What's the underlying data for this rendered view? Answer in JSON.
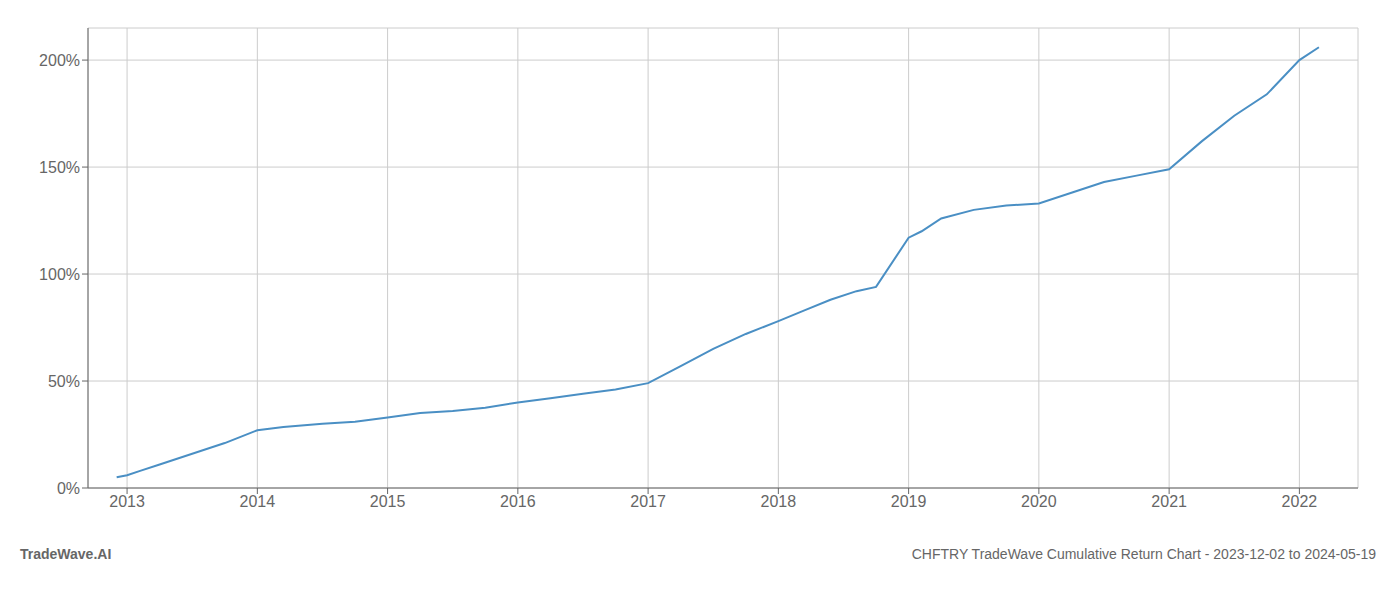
{
  "chart_data": {
    "type": "line",
    "title": "CHFTRY TradeWave Cumulative Return Chart - 2023-12-02 to 2024-05-19",
    "annotations": [
      "TradeWave.AI"
    ],
    "x": [
      2012.92,
      2013.0,
      2013.1,
      2013.25,
      2013.5,
      2013.75,
      2014.0,
      2014.2,
      2014.5,
      2014.75,
      2015.0,
      2015.25,
      2015.5,
      2015.75,
      2016.0,
      2016.25,
      2016.5,
      2016.75,
      2017.0,
      2017.25,
      2017.5,
      2017.75,
      2018.0,
      2018.2,
      2018.4,
      2018.6,
      2018.75,
      2019.0,
      2019.1,
      2019.25,
      2019.5,
      2019.75,
      2020.0,
      2020.25,
      2020.5,
      2020.75,
      2021.0,
      2021.25,
      2021.5,
      2021.75,
      2022.0,
      2022.15
    ],
    "values": [
      5,
      6,
      8,
      11,
      16,
      21,
      27,
      28.5,
      30,
      31,
      33,
      35,
      36,
      37.5,
      40,
      42,
      44,
      46,
      49,
      57,
      65,
      72,
      78,
      83,
      88,
      92,
      94,
      117,
      120,
      126,
      130,
      132,
      133,
      138,
      143,
      146,
      149,
      162,
      174,
      184,
      200,
      206
    ],
    "color": "#4a8fc4",
    "xlim": [
      2012.7,
      2022.45
    ],
    "ylim": [
      0,
      215
    ],
    "xticks": [
      2013,
      2014,
      2015,
      2016,
      2017,
      2018,
      2019,
      2020,
      2021,
      2022
    ],
    "yticks": [
      {
        "value": 0,
        "label": "0%"
      },
      {
        "value": 50,
        "label": "50%"
      },
      {
        "value": 100,
        "label": "100%"
      },
      {
        "value": 150,
        "label": "150%"
      },
      {
        "value": 200,
        "label": "200%"
      }
    ],
    "grid": true
  }
}
